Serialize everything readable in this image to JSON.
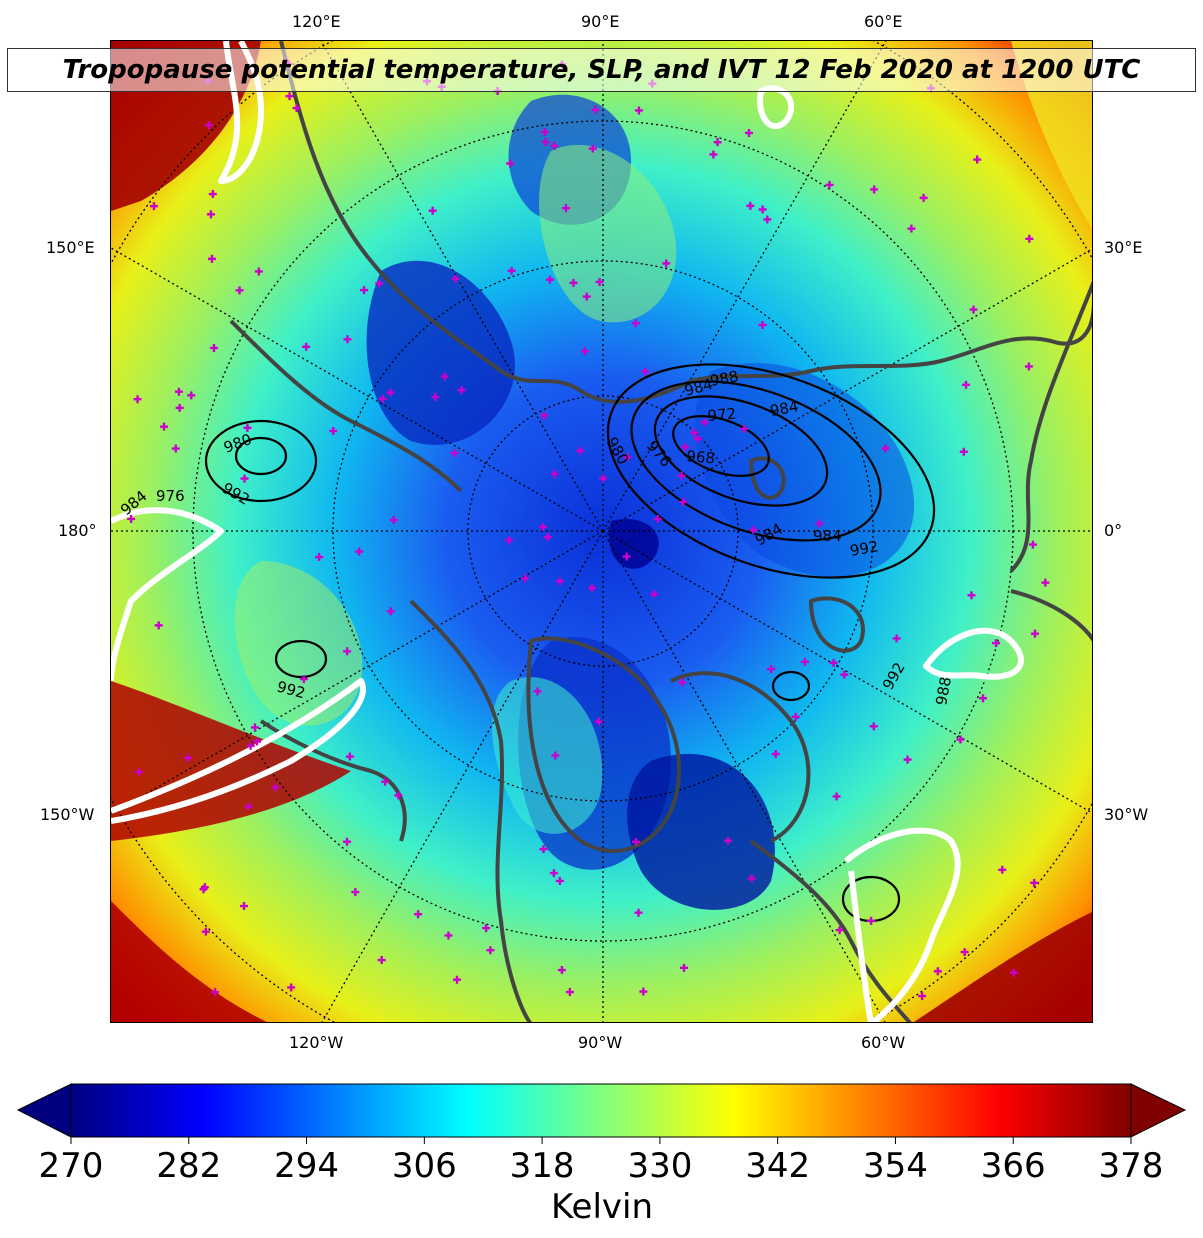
{
  "title": "Tropopause potential temperature, SLP, and IVT 12 Feb 2020 at 1200 UTC",
  "map": {
    "top_labels": [
      "120°E",
      "90°E",
      "60°E"
    ],
    "bottom_labels": [
      "120°W",
      "90°W",
      "60°W"
    ],
    "left_labels": [
      "150°E",
      "180°",
      "150°W"
    ],
    "right_labels": [
      "30°E",
      "0°",
      "30°W"
    ],
    "slp_labels": [
      "984",
      "988",
      "972",
      "968",
      "976",
      "980",
      "984",
      "984",
      "992",
      "984",
      "980",
      "992",
      "976",
      "984",
      "992",
      "992",
      "988"
    ],
    "colors": {
      "coastline": "#444444",
      "slp_contour": "#000000",
      "ivt_contour": "#ffffff",
      "station_marker": "#cc00cc",
      "graticule": "#000000"
    }
  },
  "colorbar": {
    "ticks": [
      "270",
      "282",
      "294",
      "306",
      "318",
      "330",
      "342",
      "354",
      "366",
      "378"
    ],
    "label": "Kelvin",
    "colormap": "jet",
    "extend": "both",
    "stops": [
      "#000080",
      "#0000ff",
      "#0080ff",
      "#00ffff",
      "#80ff80",
      "#ffff00",
      "#ff8000",
      "#ff0000",
      "#800000"
    ]
  }
}
